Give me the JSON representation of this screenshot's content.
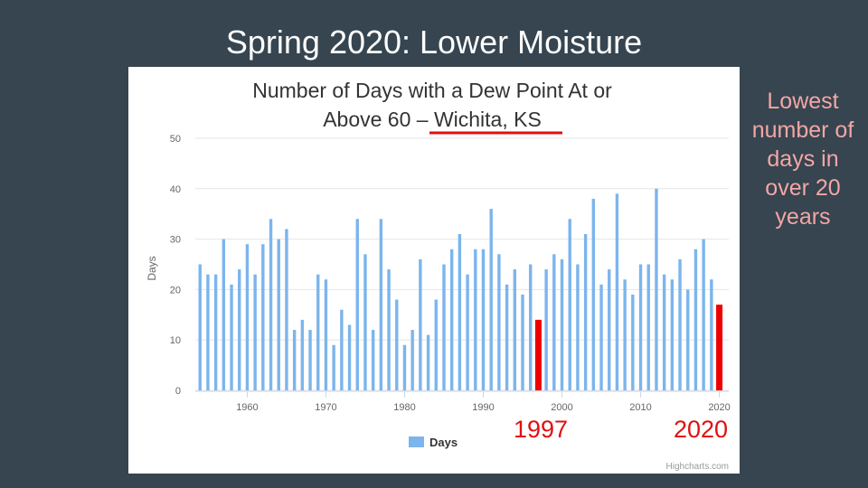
{
  "slide": {
    "title": "Spring 2020: Lower Moisture",
    "side_note": "Lowest number of days in over 20 years",
    "callout_left": "1997",
    "callout_right": "2020"
  },
  "colors": {
    "background": "#36454f",
    "bar": "#7cb5ec",
    "highlight": "#ee0000",
    "note": "#f4a6a6"
  },
  "chart_data": {
    "type": "bar",
    "title_line1": "Number of Days with a Dew Point At or",
    "title_line2": "Above 60 – Wichita, KS",
    "underline_text": "Wichita, KS",
    "xlabel": "",
    "ylabel": "Days",
    "ylim": [
      0,
      50
    ],
    "yticks": [
      0,
      10,
      20,
      30,
      40,
      50
    ],
    "xticks": [
      1960,
      1970,
      1980,
      1990,
      2000,
      2010,
      2020
    ],
    "grid": true,
    "legend": "bottom-center",
    "credits": "Highcharts.com",
    "highlight_years": [
      1997,
      2020
    ],
    "series": [
      {
        "name": "Days",
        "x": [
          1954,
          1955,
          1956,
          1957,
          1958,
          1959,
          1960,
          1961,
          1962,
          1963,
          1964,
          1965,
          1966,
          1967,
          1968,
          1969,
          1970,
          1971,
          1972,
          1973,
          1974,
          1975,
          1976,
          1977,
          1978,
          1979,
          1980,
          1981,
          1982,
          1983,
          1984,
          1985,
          1986,
          1987,
          1988,
          1989,
          1990,
          1991,
          1992,
          1993,
          1994,
          1995,
          1996,
          1997,
          1998,
          1999,
          2000,
          2001,
          2002,
          2003,
          2004,
          2005,
          2006,
          2007,
          2008,
          2009,
          2010,
          2011,
          2012,
          2013,
          2014,
          2015,
          2016,
          2017,
          2018,
          2019,
          2020
        ],
        "values": [
          25,
          23,
          23,
          30,
          21,
          24,
          29,
          23,
          29,
          34,
          30,
          32,
          12,
          14,
          12,
          23,
          22,
          9,
          16,
          13,
          34,
          27,
          12,
          34,
          24,
          18,
          9,
          12,
          26,
          11,
          18,
          25,
          28,
          31,
          23,
          28,
          28,
          36,
          27,
          21,
          24,
          19,
          25,
          14,
          24,
          27,
          26,
          34,
          25,
          31,
          38,
          21,
          24,
          39,
          22,
          19,
          25,
          25,
          40,
          23,
          22,
          26,
          20,
          28,
          30,
          22,
          17
        ]
      }
    ]
  }
}
